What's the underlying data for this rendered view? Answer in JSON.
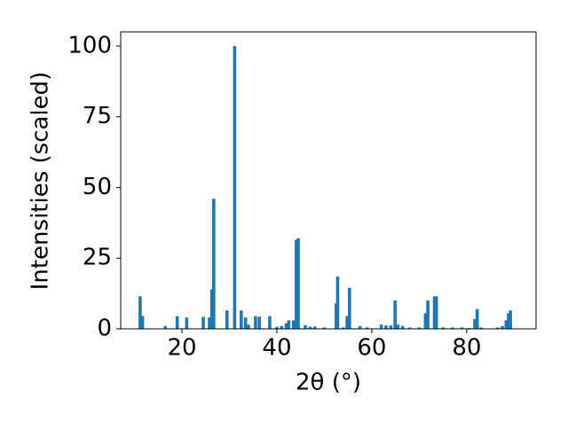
{
  "chart_data": {
    "type": "bar",
    "x_label": "2θ (°)",
    "y_label": "Intensities (scaled)",
    "color": "#1f77b4",
    "x": [
      11.2,
      11.7,
      16.5,
      19,
      21,
      24.5,
      25.8,
      26.3,
      26.7,
      29.5,
      31.1,
      32.5,
      33.4,
      34,
      35.5,
      36.3,
      38.5,
      40,
      41,
      42,
      42.5,
      43.5,
      44.1,
      44.5,
      46,
      47,
      48,
      50,
      52.5,
      52.8,
      54,
      54.8,
      55.3,
      57.5,
      59,
      62,
      63,
      64,
      64.9,
      65.5,
      66.5,
      68,
      70,
      71.3,
      71.8,
      73.2,
      73.6,
      75,
      77,
      79,
      80.5,
      81.7,
      82.2,
      83,
      86.5,
      87.5,
      88.3,
      88.8,
      89.2
    ],
    "values": [
      11.5,
      4.5,
      1,
      4.5,
      4,
      4.2,
      4,
      14,
      46,
      6.5,
      100,
      6.5,
      4,
      1.5,
      4.5,
      4.3,
      4.5,
      0.7,
      1,
      2,
      3,
      3,
      31.5,
      32,
      1.3,
      0.8,
      0.8,
      0.5,
      9,
      18.5,
      0.5,
      4.5,
      14.5,
      1,
      0.5,
      1.5,
      1.2,
      1.2,
      10,
      1.5,
      1,
      0.5,
      0.5,
      5.5,
      10,
      11.5,
      11.5,
      0.5,
      0.5,
      0.5,
      0.3,
      3.5,
      7,
      0.5,
      0.5,
      1,
      3,
      5.5,
      6.5
    ],
    "xlim": [
      7.1,
      94.6
    ],
    "ylim": [
      0,
      105
    ],
    "xticks": [
      20,
      40,
      60,
      80
    ],
    "yticks": [
      0,
      25,
      50,
      75,
      100
    ]
  }
}
